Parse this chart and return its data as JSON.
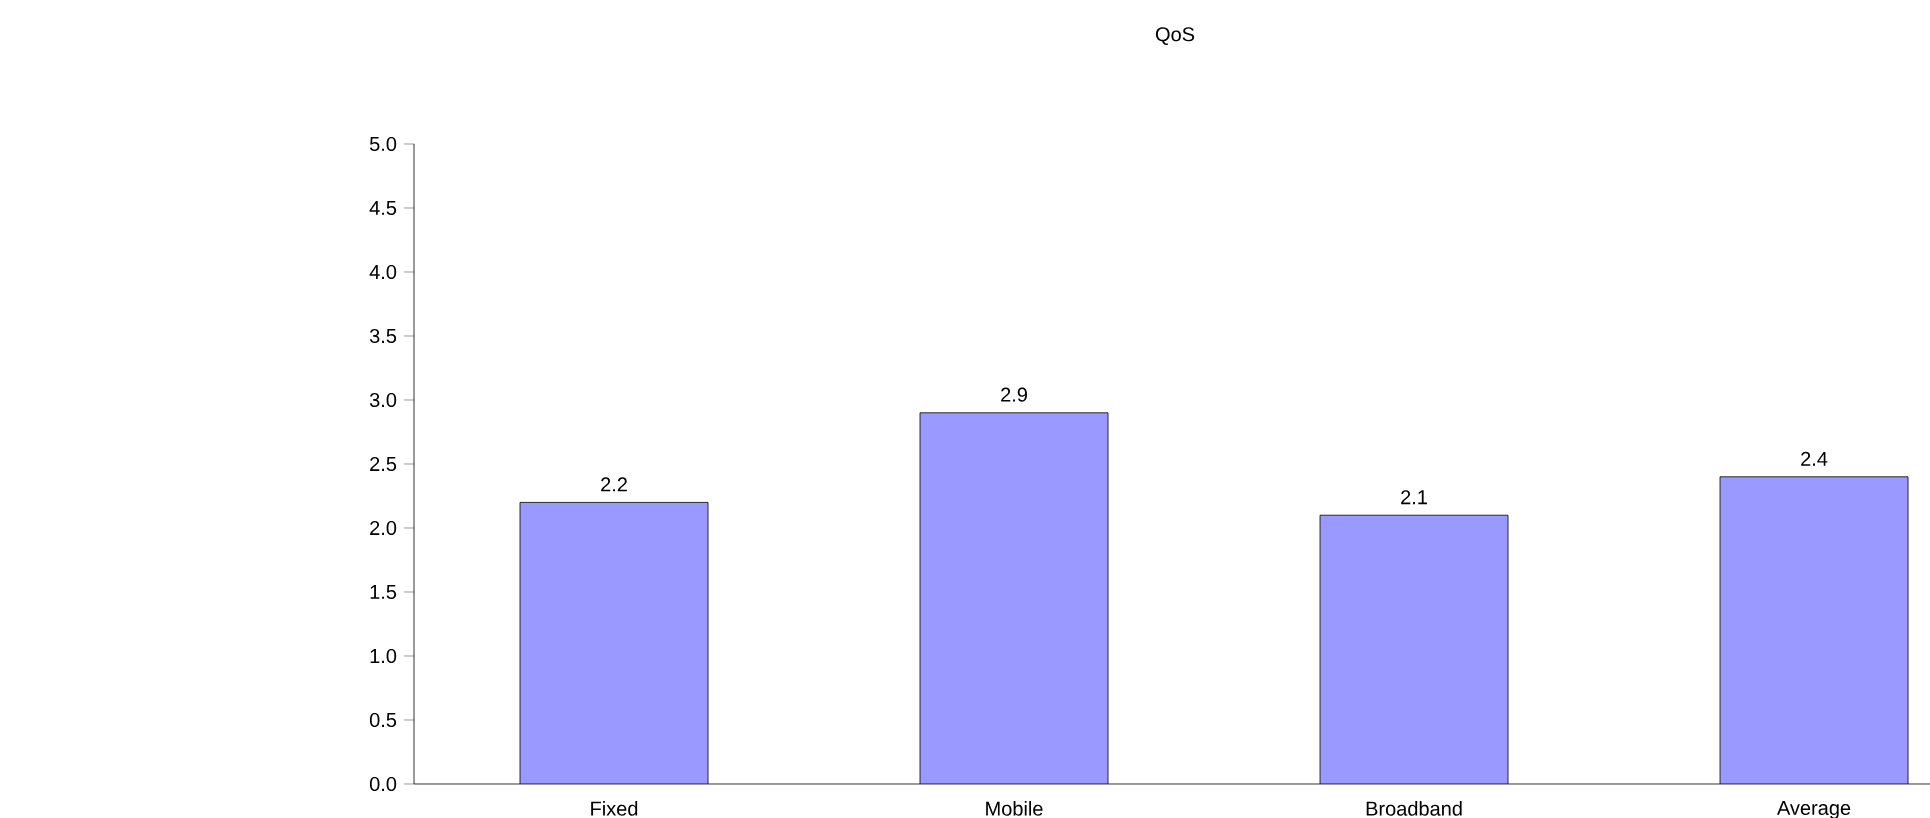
{
  "chart_data": {
    "type": "bar",
    "title": "QoS",
    "categories": [
      "Fixed",
      "Mobile",
      "Broadband",
      "Average"
    ],
    "values": [
      2.2,
      2.9,
      2.1,
      2.4
    ],
    "color": "#9999ff",
    "data_labels": true,
    "ylim": [
      0,
      5
    ],
    "yticks": [
      {
        "value": 0,
        "label": "0.0"
      },
      {
        "value": 0.5,
        "label": "0.5"
      },
      {
        "value": 1,
        "label": "1.0"
      },
      {
        "value": 1.5,
        "label": "1.5"
      },
      {
        "value": 2,
        "label": "2.0"
      },
      {
        "value": 2.5,
        "label": "2.5"
      },
      {
        "value": 3,
        "label": "3.0"
      },
      {
        "value": 3.5,
        "label": "3.5"
      },
      {
        "value": 4,
        "label": "4.0"
      },
      {
        "value": 4.5,
        "label": "4.5"
      },
      {
        "value": 5,
        "label": "5.0"
      }
    ],
    "grid": false
  }
}
